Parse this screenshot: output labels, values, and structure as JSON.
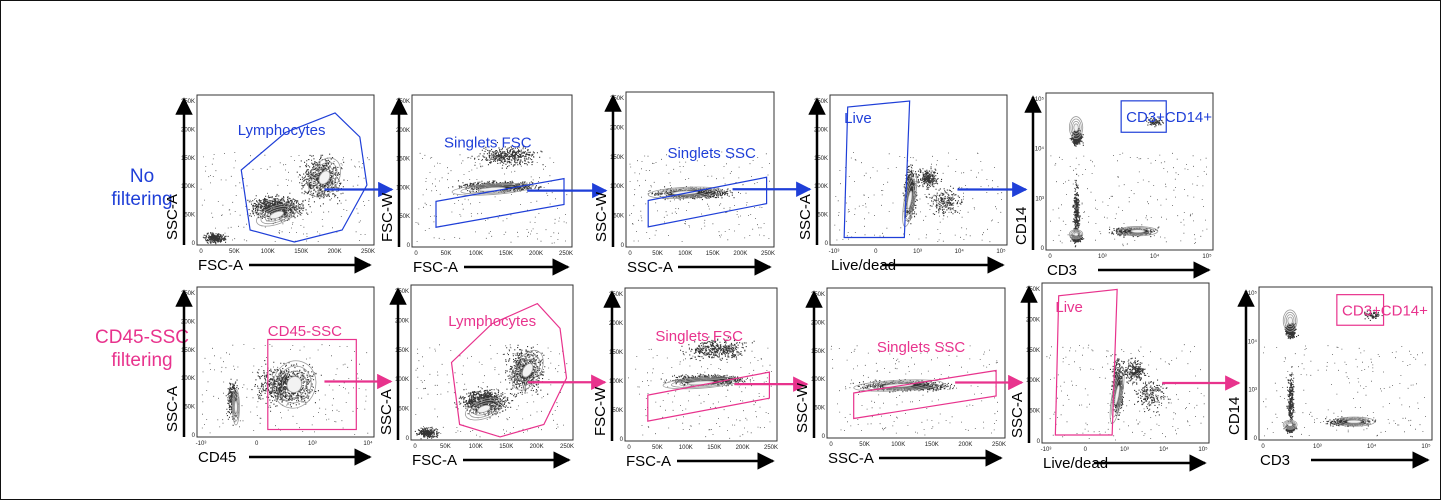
{
  "colors": {
    "row1": "#1f3fd8",
    "row2": "#e8338d",
    "plot_frame": "#333333",
    "axis": "#000000",
    "events": "#111111"
  },
  "rows": [
    {
      "label_lines": [
        "No",
        "filtering"
      ],
      "plots": [
        {
          "y_axis": "SSC-A",
          "x_axis": "FSC-A",
          "gate": "Lymphocytes",
          "gate_shape": "polygon",
          "y_ticks": [
            "250K",
            "200K",
            "150K",
            "100K",
            "50K",
            "0"
          ],
          "x_ticks": [
            "0",
            "50K",
            "100K",
            "150K",
            "200K",
            "250K"
          ]
        },
        {
          "y_axis": "FSC-W",
          "x_axis": "FSC-A",
          "gate": "Singlets FSC",
          "gate_shape": "parallelogram",
          "y_ticks": [
            "250K",
            "200K",
            "150K",
            "100K",
            "50K",
            "0"
          ],
          "x_ticks": [
            "0",
            "50K",
            "100K",
            "150K",
            "200K",
            "250K"
          ]
        },
        {
          "y_axis": "SSC-W",
          "x_axis": "SSC-A",
          "gate": "Singlets SSC",
          "gate_shape": "parallelogram",
          "y_ticks": [
            "250K",
            "200K",
            "150K",
            "100K",
            "50K",
            "0"
          ],
          "x_ticks": [
            "0",
            "50K",
            "100K",
            "150K",
            "200K",
            "250K"
          ]
        },
        {
          "y_axis": "SSC-A",
          "x_axis": "Live/dead",
          "gate": "Live",
          "gate_shape": "trapezoid",
          "y_ticks": [
            "250K",
            "200K",
            "150K",
            "100K",
            "50K",
            "0"
          ],
          "x_ticks": [
            "-10³",
            "0",
            "10³",
            "10⁴",
            "10⁵"
          ]
        },
        {
          "y_axis": "CD14",
          "x_axis": "CD3",
          "gate": "CD3+CD14+",
          "gate_shape": "rectangle",
          "y_ticks": [
            "10⁵",
            "10⁴",
            "10³",
            "0"
          ],
          "x_ticks": [
            "0",
            "10³",
            "10⁴",
            "10⁵"
          ]
        }
      ]
    },
    {
      "label_lines": [
        "CD45-SSC",
        "filtering"
      ],
      "plots": [
        {
          "y_axis": "SSC-A",
          "x_axis": "CD45",
          "gate": "CD45-SSC",
          "gate_shape": "rectangle",
          "y_ticks": [
            "250K",
            "200K",
            "150K",
            "100K",
            "50K",
            "0"
          ],
          "x_ticks": [
            "-10³",
            "0",
            "10³",
            "10⁴"
          ]
        },
        {
          "y_axis": "SSC-A",
          "x_axis": "FSC-A",
          "gate": "Lymphocytes",
          "gate_shape": "polygon",
          "y_ticks": [
            "250K",
            "200K",
            "150K",
            "100K",
            "50K",
            "0"
          ],
          "x_ticks": [
            "0",
            "50K",
            "100K",
            "150K",
            "200K",
            "250K"
          ]
        },
        {
          "y_axis": "FSC-W",
          "x_axis": "FSC-A",
          "gate": "Singlets FSC",
          "gate_shape": "parallelogram",
          "y_ticks": [
            "250K",
            "200K",
            "150K",
            "100K",
            "50K",
            "0"
          ],
          "x_ticks": [
            "0",
            "50K",
            "100K",
            "150K",
            "200K",
            "250K"
          ]
        },
        {
          "y_axis": "SSC-W",
          "x_axis": "SSC-A",
          "gate": "Singlets SSC",
          "gate_shape": "parallelogram",
          "y_ticks": [
            "250K",
            "200K",
            "150K",
            "100K",
            "50K",
            "0"
          ],
          "x_ticks": [
            "0",
            "50K",
            "100K",
            "150K",
            "200K",
            "250K"
          ]
        },
        {
          "y_axis": "SSC-A",
          "x_axis": "Live/dead",
          "gate": "Live",
          "gate_shape": "trapezoid",
          "y_ticks": [
            "250K",
            "200K",
            "150K",
            "100K",
            "50K",
            "0"
          ],
          "x_ticks": [
            "-10³",
            "0",
            "10³",
            "10⁴",
            "10⁵"
          ]
        },
        {
          "y_axis": "CD14",
          "x_axis": "CD3",
          "gate": "CD3+CD14+",
          "gate_shape": "rectangle",
          "y_ticks": [
            "10⁵",
            "10⁴",
            "10³",
            "0"
          ],
          "x_ticks": [
            "0",
            "10³",
            "10⁴",
            "10⁵"
          ]
        }
      ]
    }
  ]
}
